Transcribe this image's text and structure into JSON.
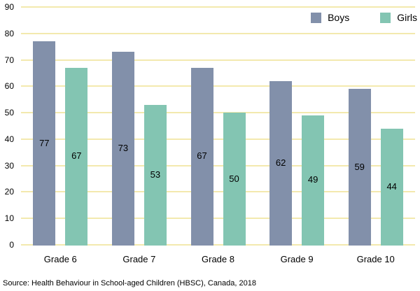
{
  "chart_data": {
    "type": "bar",
    "categories": [
      "Grade 6",
      "Grade 7",
      "Grade 8",
      "Grade 9",
      "Grade 10"
    ],
    "series": [
      {
        "name": "Boys",
        "color": "#8290aa",
        "values": [
          77,
          73,
          67,
          62,
          59
        ]
      },
      {
        "name": "Girls",
        "color": "#83c5b2",
        "values": [
          67,
          53,
          50,
          49,
          44
        ]
      }
    ],
    "xlabel": "",
    "ylabel": "",
    "title": "",
    "ylim": [
      0,
      90
    ],
    "ytick_step": 10,
    "grid": "horizontal",
    "gridline_color": "#f3e9ae",
    "legend_position": "top-right",
    "value_labels": "inside-center"
  },
  "source_note": "Source: Health Behaviour in School-aged Children (HBSC), Canada, 2018"
}
